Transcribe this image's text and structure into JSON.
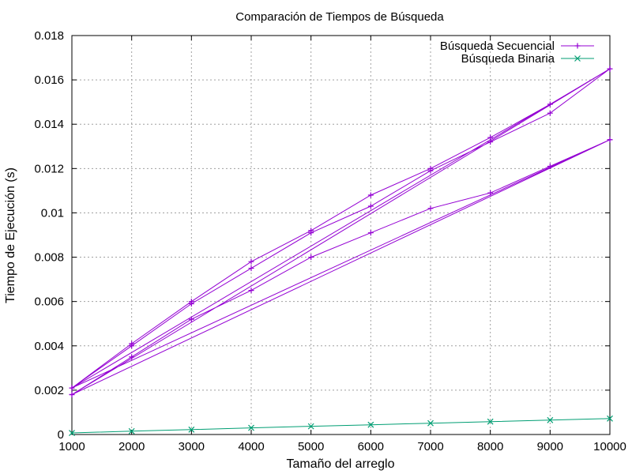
{
  "chart_data": {
    "type": "line",
    "title": "Comparación de Tiempos de Búsqueda",
    "xlabel": "Tamaño del arreglo",
    "ylabel": "Tiempo de Ejecución (s)",
    "xlim": [
      1000,
      10000
    ],
    "ylim": [
      0,
      0.018
    ],
    "xticks": [
      "1000",
      "2000",
      "3000",
      "4000",
      "5000",
      "6000",
      "7000",
      "8000",
      "9000",
      "10000"
    ],
    "yticks": [
      "0",
      "0.002",
      "0.004",
      "0.006",
      "0.008",
      "0.01",
      "0.012",
      "0.014",
      "0.016",
      "0.018"
    ],
    "grid": true,
    "legend": "top-right",
    "series": [
      {
        "name": "Búsqueda Secuencial",
        "color": "#9400d3",
        "marker": "plus",
        "points": [
          [
            1000,
            0.0021
          ],
          [
            2000,
            0.0041
          ],
          [
            3000,
            0.006
          ],
          [
            4000,
            0.0078
          ],
          [
            5000,
            0.0092
          ],
          [
            6000,
            0.0108
          ],
          [
            7000,
            0.012
          ],
          [
            8000,
            0.0134
          ],
          [
            9000,
            0.0149
          ],
          [
            10000,
            0.0165
          ],
          [
            1000,
            0.0021
          ],
          [
            2000,
            0.004
          ],
          [
            3000,
            0.0059
          ],
          [
            4000,
            0.0075
          ],
          [
            5000,
            0.0091
          ],
          [
            6000,
            0.0103
          ],
          [
            7000,
            0.0119
          ],
          [
            8000,
            0.0132
          ],
          [
            9000,
            0.0145
          ],
          [
            10000,
            0.0165
          ],
          [
            1000,
            0.0018
          ],
          [
            2000,
            0.0035
          ],
          [
            3000,
            0.0052
          ],
          [
            4000,
            0.0065
          ],
          [
            5000,
            0.008
          ],
          [
            6000,
            0.0091
          ],
          [
            7000,
            0.0102
          ],
          [
            8000,
            0.0109
          ],
          [
            9000,
            0.0121
          ],
          [
            10000,
            0.0133
          ],
          [
            1000,
            0.0021
          ],
          [
            10000,
            0.0165
          ],
          [
            1000,
            0.0018
          ],
          [
            10000,
            0.0133
          ]
        ]
      },
      {
        "name": "Búsqueda Binaria",
        "color": "#009e73",
        "marker": "cross",
        "points": [
          [
            1000,
            7e-05
          ],
          [
            2000,
            0.00015
          ],
          [
            3000,
            0.00022
          ],
          [
            4000,
            0.0003
          ],
          [
            5000,
            0.00037
          ],
          [
            6000,
            0.00044
          ],
          [
            7000,
            0.00051
          ],
          [
            8000,
            0.00058
          ],
          [
            9000,
            0.00065
          ],
          [
            10000,
            0.00072
          ]
        ]
      }
    ]
  }
}
